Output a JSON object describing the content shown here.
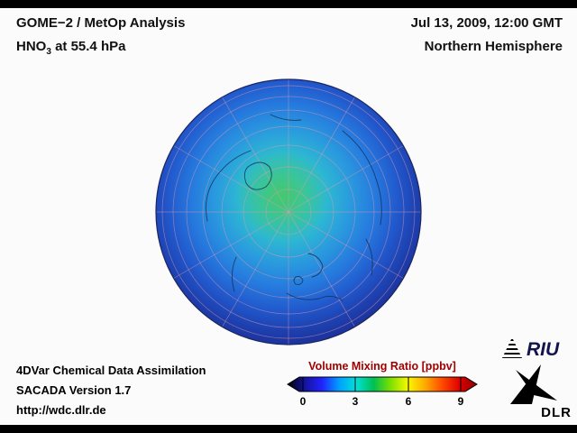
{
  "header": {
    "analysis_title": "GOME−2 / MetOp Analysis",
    "species_prefix": "HNO",
    "species_sub": "3",
    "species_suffix": " at 55.4 hPa",
    "datetime": "Jul 13, 2009, 12:00 GMT",
    "hemisphere": "Northern Hemisphere"
  },
  "footer": {
    "line1": "4DVar Chemical Data Assimilation",
    "line2": "SACADA Version 1.7",
    "line3": "http://wdc.dlr.de"
  },
  "colorbar": {
    "title": "Volume Mixing Ratio [ppbv]",
    "title_color": "#a00000",
    "ticks": [
      "0",
      "3",
      "6",
      "9"
    ],
    "tick_positions": [
      18,
      76,
      135,
      193
    ],
    "gradient": [
      "#000000",
      "#14149e",
      "#2222ff",
      "#00a0ff",
      "#00e0d8",
      "#00c050",
      "#7fe000",
      "#f8f800",
      "#ffa800",
      "#ff4800",
      "#dd0000",
      "#8a0000"
    ]
  },
  "logos": {
    "riu": "RIU",
    "dlr": "DLR"
  },
  "chart_data": {
    "type": "heatmap",
    "title": "GOME−2 / MetOp Analysis, HNO3 at 55.4 hPa",
    "subtitle": "Jul 13, 2009, 12:00 GMT, Northern Hemisphere",
    "projection": "orthographic, North Pole centered, graticule every 30° longitude / 10° latitude",
    "colorbar_label": "Volume Mixing Ratio [ppbv]",
    "colorbar_ticks": [
      0,
      3,
      6,
      9
    ],
    "value_range_ppbv": [
      0,
      10
    ],
    "spatial_pattern": "Highest values ≈3–5 ppbv (cyan to green) over the polar cap near the pole; values decrease outward through blue ≈1–2 ppbv at mid latitudes to dark blue/navy ≈0–1 ppbv at the low-latitude limb"
  }
}
